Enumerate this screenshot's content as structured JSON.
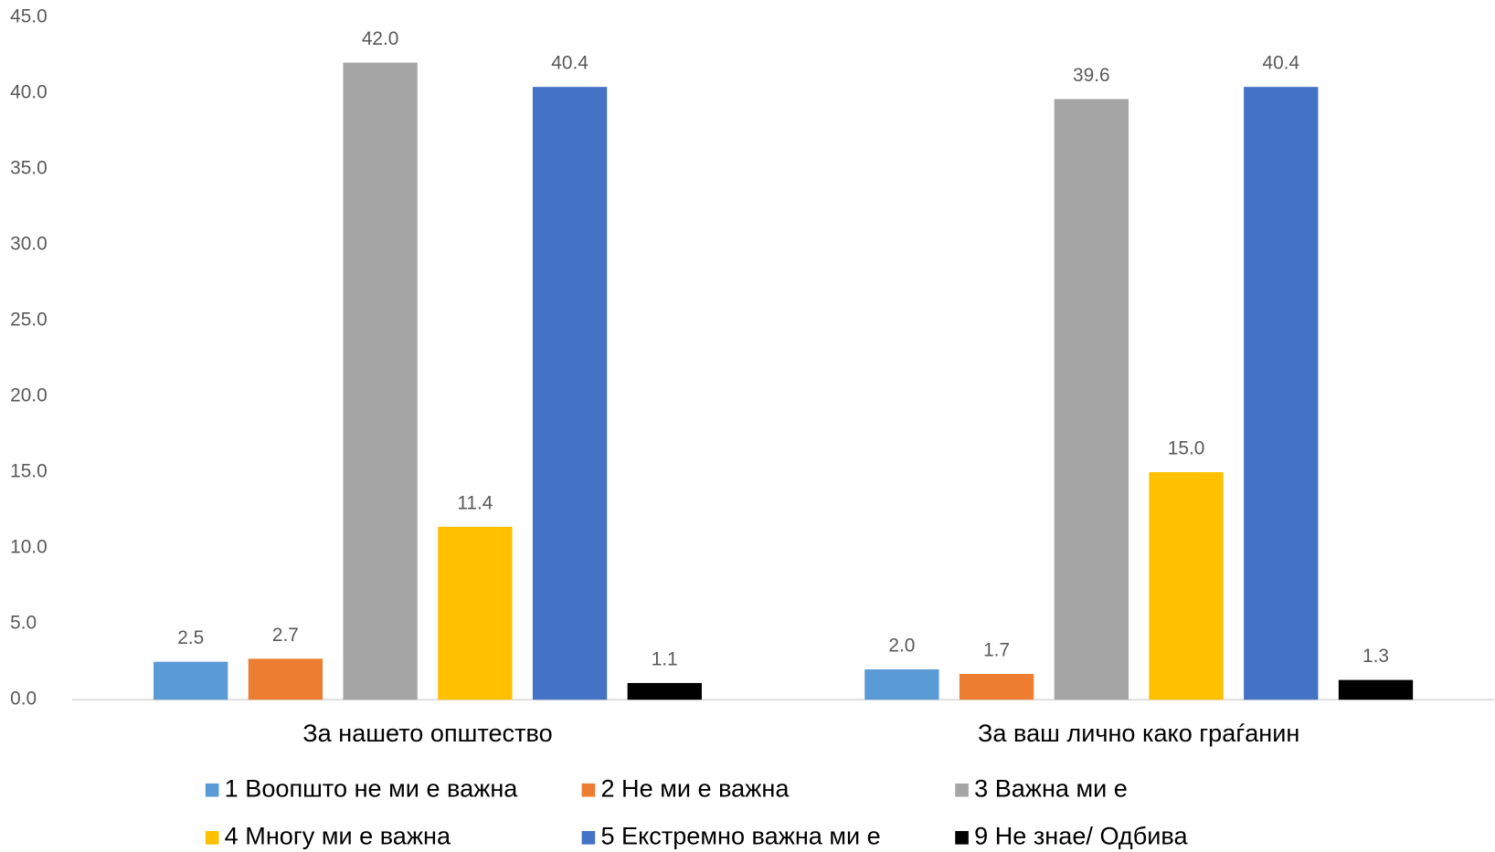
{
  "chart_data": {
    "type": "bar",
    "categories": [
      "За нашето општество",
      "За ваш лично како граѓанин"
    ],
    "series": [
      {
        "name": "1 Воопшто не ми е важна",
        "color": "#5b9bd5",
        "values": [
          2.5,
          2.0
        ],
        "value_labels": [
          "2.5",
          "2.0"
        ]
      },
      {
        "name": "2 Не ми е важна",
        "color": "#ed7d31",
        "values": [
          2.7,
          1.7
        ],
        "value_labels": [
          "2.7",
          "1.7"
        ]
      },
      {
        "name": "3 Важна ми е",
        "color": "#a5a5a5",
        "values": [
          42.0,
          39.6
        ],
        "value_labels": [
          "42.0",
          "39.6"
        ]
      },
      {
        "name": "4 Многу ми е важна",
        "color": "#ffc000",
        "values": [
          11.4,
          15.0
        ],
        "value_labels": [
          "11.4",
          "15.0"
        ]
      },
      {
        "name": "5 Екстремно важна ми е",
        "color": "#4472c4",
        "values": [
          40.4,
          40.4
        ],
        "value_labels": [
          "40.4",
          "40.4"
        ]
      },
      {
        "name": "9 Не знае/ Одбива",
        "color": "#000000",
        "values": [
          1.1,
          1.3
        ],
        "value_labels": [
          "1.1",
          "1.3"
        ]
      }
    ],
    "ylim": [
      0,
      45
    ],
    "yticks": [
      {
        "value": 0,
        "label": "0.0"
      },
      {
        "value": 5,
        "label": "5.0"
      },
      {
        "value": 10,
        "label": "10.0"
      },
      {
        "value": 15,
        "label": "15.0"
      },
      {
        "value": 20,
        "label": "20.0"
      },
      {
        "value": 25,
        "label": "25.0"
      },
      {
        "value": 30,
        "label": "30.0"
      },
      {
        "value": 35,
        "label": "35.0"
      },
      {
        "value": 40,
        "label": "40.0"
      },
      {
        "value": 45,
        "label": "45.0"
      }
    ],
    "grid": false,
    "legend": "bottom"
  }
}
